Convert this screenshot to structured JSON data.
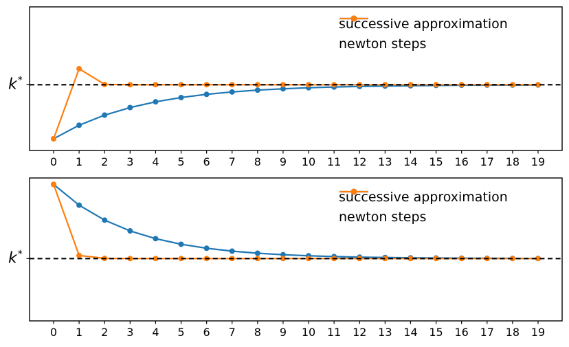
{
  "figure": {
    "background": "#ffffff",
    "kind": "matplotlib-style figure with two stacked subplots"
  },
  "y_axis": {
    "label_base": "k",
    "label_sup": "*"
  },
  "colors": {
    "successive_approximation": "#1f77b4",
    "newton_steps": "#ff7f0e",
    "kstar_line": "#000000"
  },
  "chart_data": [
    {
      "type": "line",
      "title": "",
      "xlabel": "",
      "ylabel": "k*",
      "x": [
        0,
        1,
        2,
        3,
        4,
        5,
        6,
        7,
        8,
        9,
        10,
        11,
        12,
        13,
        14,
        15,
        16,
        17,
        18,
        19
      ],
      "y_units": "relative to steady state (k* = 1); y-axis shows only the k* tick",
      "kstar_level": 1.0,
      "grid": false,
      "legend_position": "upper right",
      "reference_line": {
        "label": "k*",
        "value": 1.0,
        "style": "dashed",
        "color": "#000000"
      },
      "series": [
        {
          "name": "successive approximation",
          "color": "#1f77b4",
          "marker": "circle",
          "values": [
            0.178,
            0.384,
            0.538,
            0.653,
            0.74,
            0.805,
            0.854,
            0.89,
            0.918,
            0.938,
            0.954,
            0.965,
            0.974,
            0.98,
            0.985,
            0.989,
            0.992,
            0.994,
            0.995,
            0.996
          ]
        },
        {
          "name": "newton steps",
          "color": "#ff7f0e",
          "marker": "circle",
          "values": [
            0.178,
            1.243,
            1.005,
            1.0,
            1.0,
            1.0,
            1.0,
            1.0,
            1.0,
            1.0,
            1.0,
            1.0,
            1.0,
            1.0,
            1.0,
            1.0,
            1.0,
            1.0,
            1.0,
            1.0
          ]
        }
      ]
    },
    {
      "type": "line",
      "title": "",
      "xlabel": "",
      "ylabel": "k*",
      "x": [
        0,
        1,
        2,
        3,
        4,
        5,
        6,
        7,
        8,
        9,
        10,
        11,
        12,
        13,
        14,
        15,
        16,
        17,
        18,
        19
      ],
      "y_units": "relative to steady state (k* = 1); y-axis shows only the k* tick",
      "kstar_level": 1.0,
      "grid": false,
      "legend_position": "upper right",
      "reference_line": {
        "label": "k*",
        "value": 1.0,
        "style": "dashed",
        "color": "#000000"
      },
      "series": [
        {
          "name": "successive approximation",
          "color": "#1f77b4",
          "marker": "circle",
          "values": [
            2.19,
            1.857,
            1.617,
            1.444,
            1.32,
            1.23,
            1.166,
            1.119,
            1.086,
            1.062,
            1.045,
            1.032,
            1.023,
            1.017,
            1.012,
            1.009,
            1.006,
            1.005,
            1.003,
            1.002
          ]
        },
        {
          "name": "newton steps",
          "color": "#ff7f0e",
          "marker": "circle",
          "values": [
            2.19,
            1.05,
            1.003,
            1.0,
            1.0,
            1.0,
            1.0,
            1.0,
            1.0,
            1.0,
            1.0,
            1.0,
            1.0,
            1.0,
            1.0,
            1.0,
            1.0,
            1.0,
            1.0,
            1.0
          ]
        }
      ]
    }
  ]
}
